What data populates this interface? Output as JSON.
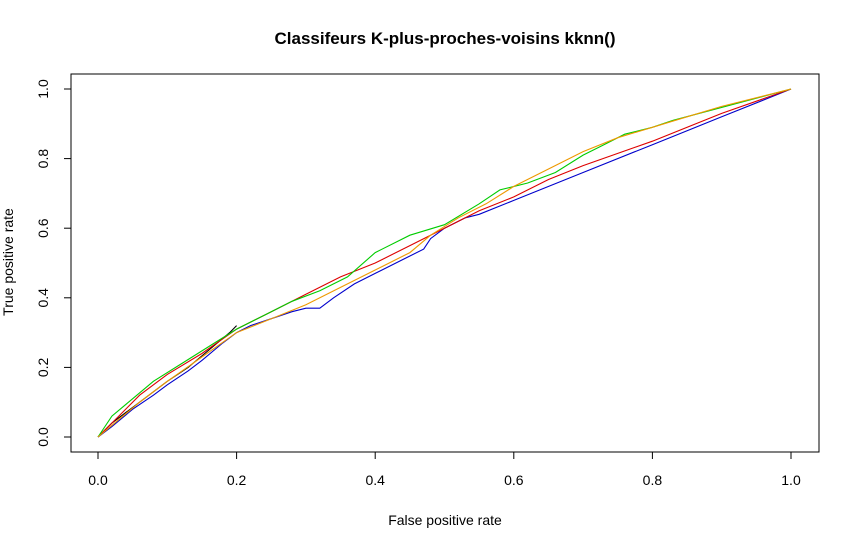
{
  "chart_data": {
    "type": "line",
    "title": "Classifeurs K-plus-proches-voisins kknn()",
    "xlabel": "False positive rate",
    "ylabel": "True positive rate",
    "xlim": [
      0,
      1
    ],
    "ylim": [
      0,
      1
    ],
    "x_ticks": [
      "0.0",
      "0.2",
      "0.4",
      "0.6",
      "0.8",
      "1.0"
    ],
    "y_ticks": [
      "0.0",
      "0.2",
      "0.4",
      "0.6",
      "0.8",
      "1.0"
    ],
    "grid": false,
    "legend": "none",
    "series": [
      {
        "color": "#000000",
        "x": [
          0,
          0.01,
          0.02,
          0.04,
          0.06,
          0.08,
          0.1,
          0.13,
          0.16,
          0.19,
          0.2
        ],
        "y": [
          0,
          0.02,
          0.04,
          0.07,
          0.1,
          0.13,
          0.16,
          0.2,
          0.25,
          0.3,
          0.32
        ]
      },
      {
        "color": "#0000cc",
        "x": [
          0,
          0.02,
          0.05,
          0.08,
          0.1,
          0.13,
          0.15,
          0.18,
          0.2,
          0.22,
          0.25,
          0.28,
          0.3,
          0.32,
          0.34,
          0.37,
          0.4,
          0.44,
          0.47,
          0.48,
          0.5,
          0.53,
          0.55,
          0.6,
          0.7,
          0.8,
          0.9,
          1.0
        ],
        "y": [
          0,
          0.03,
          0.08,
          0.12,
          0.15,
          0.19,
          0.22,
          0.27,
          0.3,
          0.32,
          0.34,
          0.36,
          0.37,
          0.37,
          0.4,
          0.44,
          0.47,
          0.51,
          0.54,
          0.57,
          0.6,
          0.63,
          0.64,
          0.68,
          0.76,
          0.84,
          0.92,
          1.0
        ]
      },
      {
        "color": "#dd0000",
        "x": [
          0,
          0.03,
          0.06,
          0.1,
          0.15,
          0.2,
          0.25,
          0.3,
          0.35,
          0.4,
          0.45,
          0.5,
          0.55,
          0.6,
          0.65,
          0.7,
          0.8,
          0.9,
          1.0
        ],
        "y": [
          0,
          0.06,
          0.12,
          0.18,
          0.24,
          0.31,
          0.36,
          0.41,
          0.46,
          0.5,
          0.55,
          0.6,
          0.65,
          0.69,
          0.74,
          0.78,
          0.85,
          0.93,
          1.0
        ]
      },
      {
        "color": "#00cc00",
        "x": [
          0,
          0.02,
          0.05,
          0.08,
          0.12,
          0.16,
          0.2,
          0.24,
          0.28,
          0.32,
          0.36,
          0.4,
          0.45,
          0.5,
          0.55,
          0.58,
          0.62,
          0.66,
          0.7,
          0.73,
          0.76,
          0.8,
          0.83,
          1.0
        ],
        "y": [
          0,
          0.06,
          0.11,
          0.16,
          0.21,
          0.26,
          0.31,
          0.35,
          0.39,
          0.42,
          0.46,
          0.53,
          0.58,
          0.61,
          0.67,
          0.71,
          0.73,
          0.76,
          0.81,
          0.84,
          0.87,
          0.89,
          0.91,
          1.0
        ]
      },
      {
        "color": "#ee9900",
        "x": [
          0,
          0.03,
          0.06,
          0.1,
          0.15,
          0.2,
          0.25,
          0.3,
          0.35,
          0.4,
          0.45,
          0.48,
          0.52,
          0.56,
          0.6,
          0.65,
          0.7,
          0.75,
          0.8,
          0.85,
          0.9,
          1.0
        ],
        "y": [
          0,
          0.05,
          0.1,
          0.16,
          0.23,
          0.3,
          0.34,
          0.38,
          0.43,
          0.48,
          0.53,
          0.58,
          0.63,
          0.67,
          0.72,
          0.77,
          0.82,
          0.86,
          0.89,
          0.92,
          0.95,
          1.0
        ]
      }
    ]
  }
}
